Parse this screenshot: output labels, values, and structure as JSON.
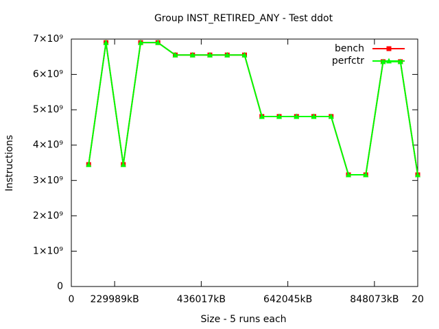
{
  "chart_data": {
    "type": "line",
    "title": "Group INST_RETIRED_ANY - Test ddot",
    "xlabel": "Size - 5 runs each",
    "ylabel": "Instructions",
    "x": [
      1,
      2,
      3,
      4,
      5,
      6,
      7,
      8,
      9,
      10,
      11,
      12,
      13,
      14,
      15,
      16,
      17,
      18,
      19,
      20
    ],
    "series": [
      {
        "name": "bench",
        "color": "#ff0000",
        "marker": "square",
        "values": [
          3450000000,
          6900000000,
          3450000000,
          6900000000,
          6900000000,
          6550000000,
          6550000000,
          6550000000,
          6550000000,
          6550000000,
          4810000000,
          4810000000,
          4810000000,
          4810000000,
          4810000000,
          3160000000,
          3160000000,
          6360000000,
          6360000000,
          3160000000
        ]
      },
      {
        "name": "perfctr",
        "color": "#00ff00",
        "marker": "triangle",
        "values": [
          3450000000,
          6900000000,
          3450000000,
          6900000000,
          6900000000,
          6550000000,
          6550000000,
          6550000000,
          6550000000,
          6550000000,
          4810000000,
          4810000000,
          4810000000,
          4810000000,
          4810000000,
          3160000000,
          3160000000,
          6360000000,
          6360000000,
          3160000000
        ]
      }
    ],
    "xlim": [
      0,
      20
    ],
    "xticks": [
      0,
      {
        "value": 2.5,
        "label": "229989kB"
      },
      {
        "value": 7.5,
        "label": "436017kB"
      },
      {
        "value": 12.5,
        "label": "642045kB"
      },
      {
        "value": 17.5,
        "label": "848073kB"
      },
      20
    ],
    "ylim": [
      0,
      7000000000
    ],
    "yticks": [
      0,
      {
        "value": 1000000000,
        "label": "1×10⁹"
      },
      {
        "value": 2000000000,
        "label": "2×10⁹"
      },
      {
        "value": 3000000000,
        "label": "3×10⁹"
      },
      {
        "value": 4000000000,
        "label": "4×10⁹"
      },
      {
        "value": 5000000000,
        "label": "5×10⁹"
      },
      {
        "value": 6000000000,
        "label": "6×10⁹"
      },
      {
        "value": 7000000000,
        "label": "7×10⁹"
      }
    ],
    "legend": "top-right"
  }
}
